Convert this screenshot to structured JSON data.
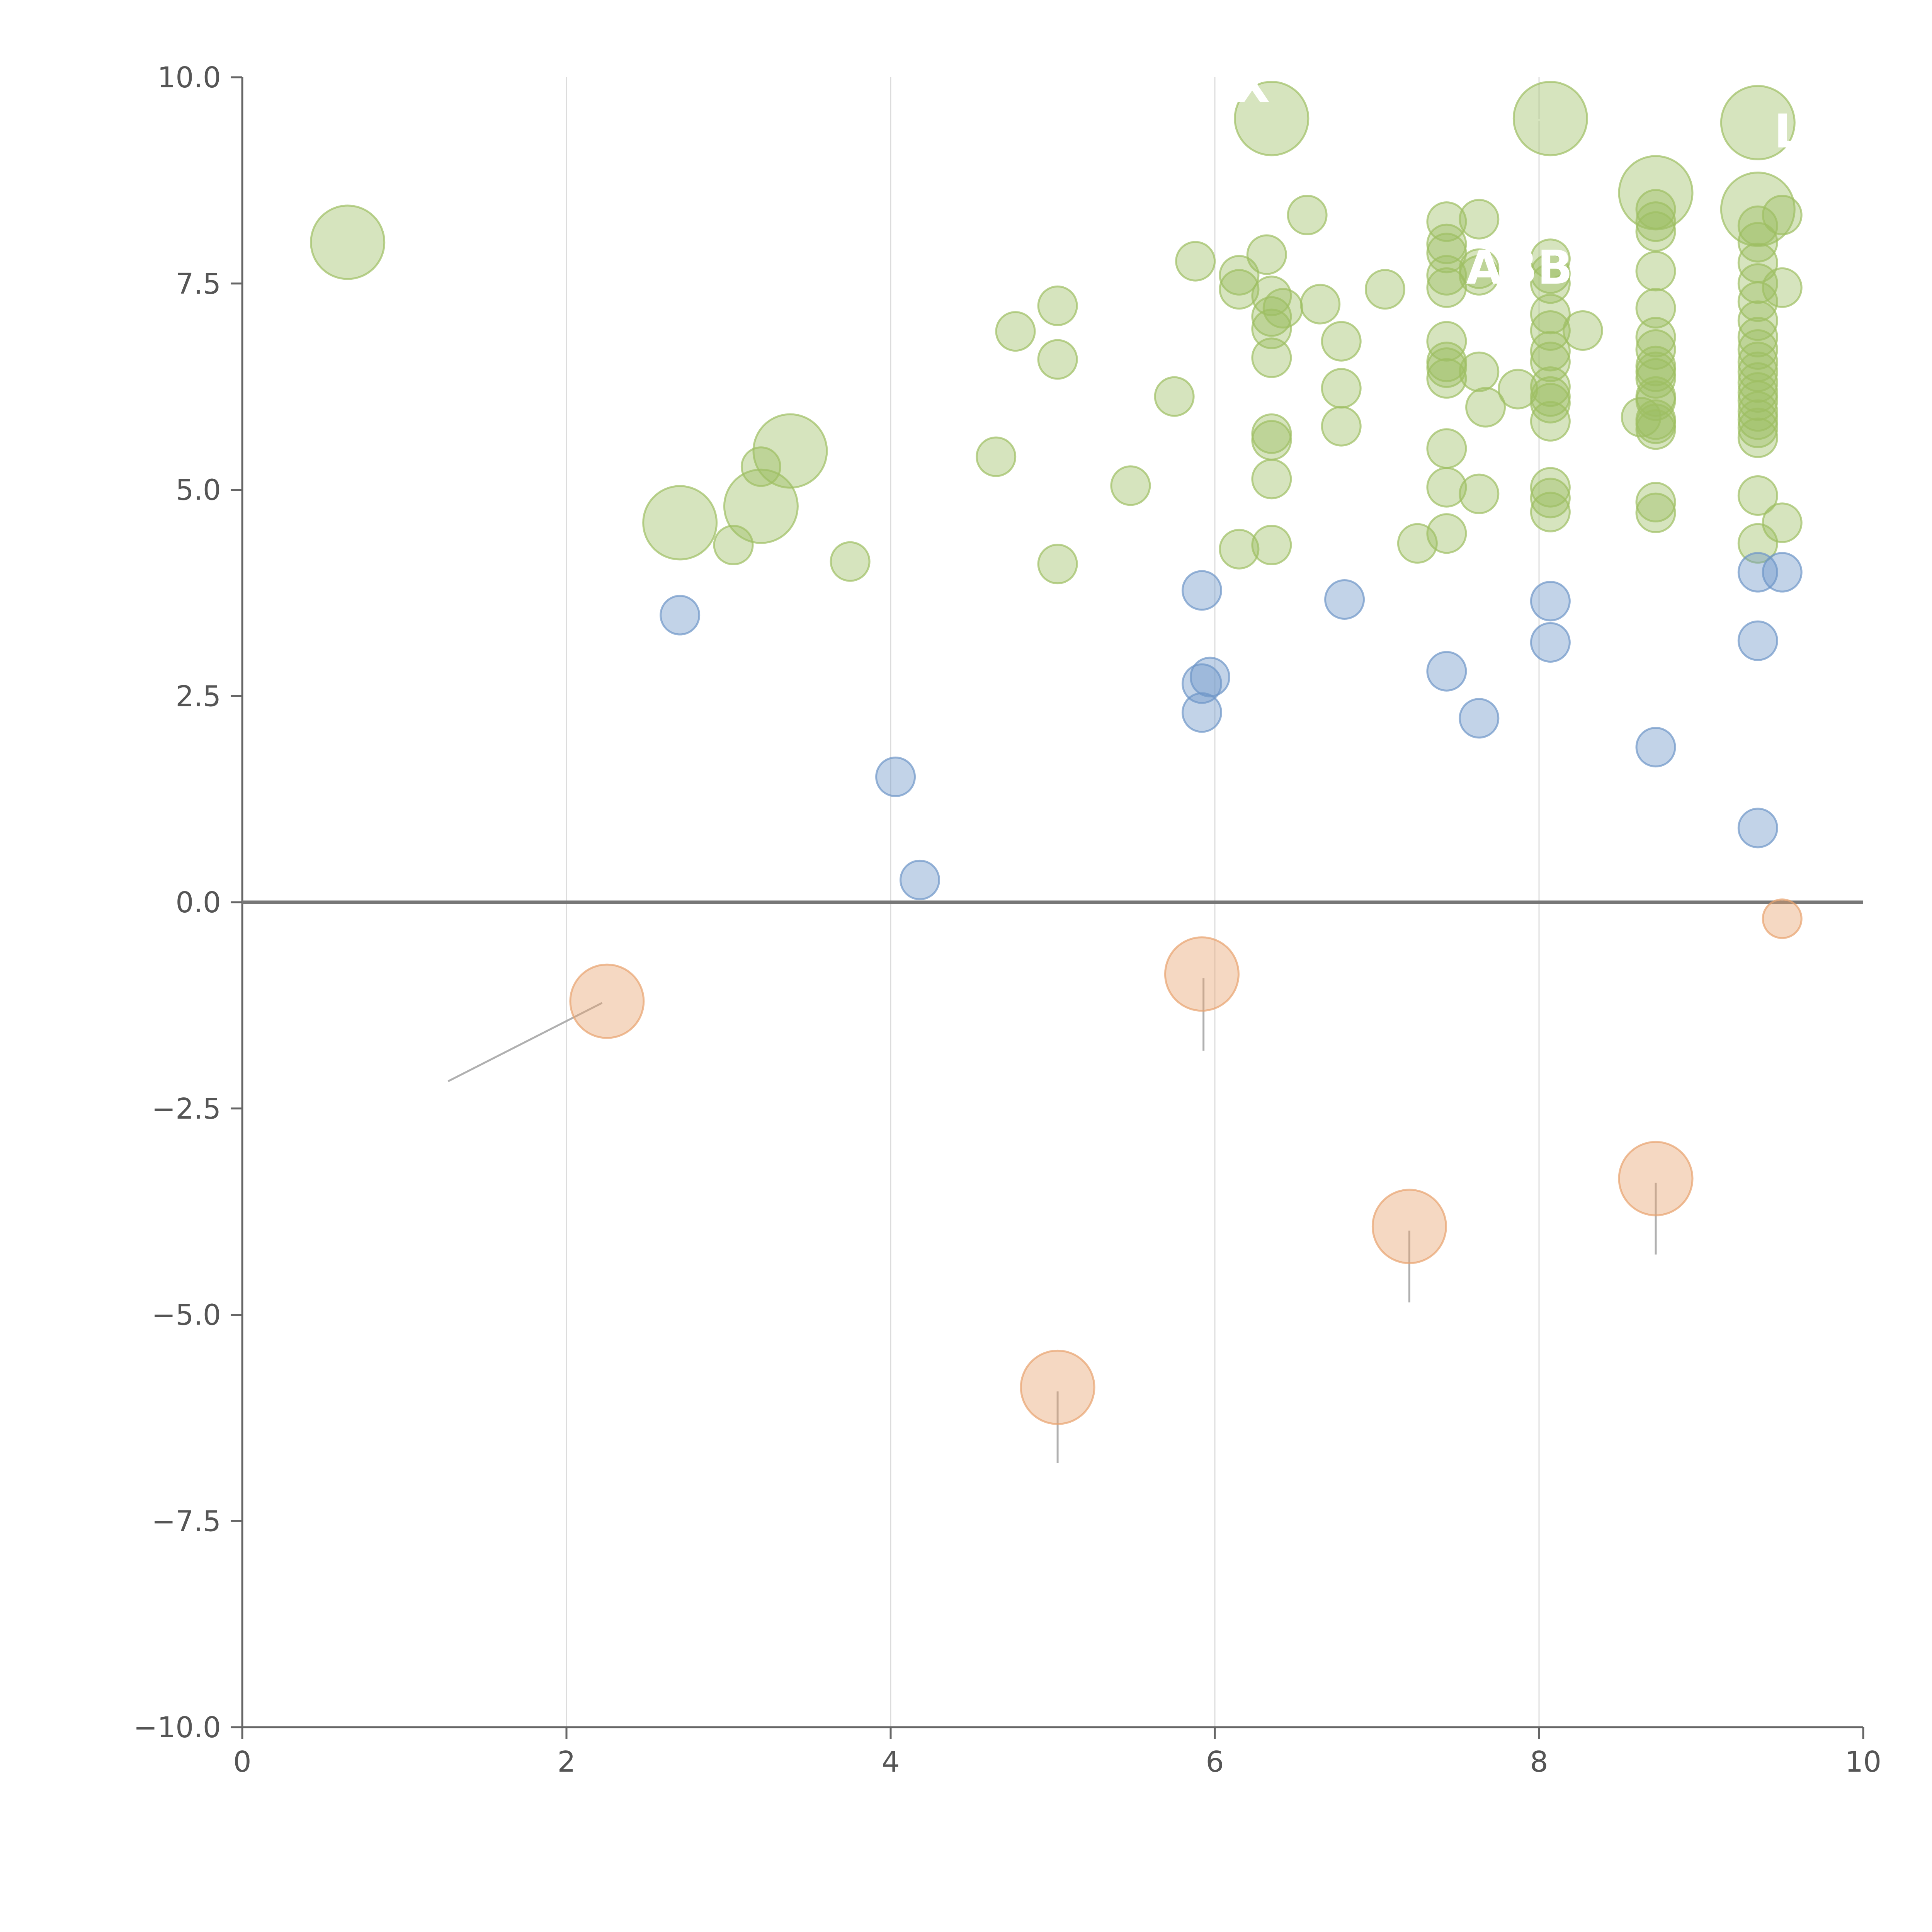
{
  "chart_data": {
    "type": "scatter",
    "title": "",
    "xlabel": "",
    "ylabel": "",
    "xlim": [
      0,
      10
    ],
    "ylim": [
      -10,
      10
    ],
    "x_ticks": [
      0,
      2,
      4,
      6,
      8,
      10
    ],
    "y_ticks": [
      10,
      7.5,
      5,
      2.5,
      0,
      -2.5,
      -5,
      -7.5,
      -10
    ],
    "x_tick_labels": [
      "0",
      "2",
      "4",
      "6",
      "8",
      "10"
    ],
    "y_tick_labels": [
      "10.0",
      "7.5",
      "5.0",
      "2.5",
      "0.0",
      "−2.5",
      "−5.0",
      "−7.5",
      "−10.0"
    ],
    "grid": "vertical lines at x ticks",
    "zero_line": true,
    "colors": {
      "green": "#9ebf63",
      "blue": "#6e96c8",
      "orange": "#e8a26e"
    },
    "series": [
      {
        "color": "green",
        "points": [
          {
            "x": 0.65,
            "y": 8.0,
            "size": "large"
          },
          {
            "x": 2.7,
            "y": 4.6,
            "size": "large"
          },
          {
            "x": 3.2,
            "y": 4.8,
            "size": "large"
          },
          {
            "x": 3.38,
            "y": 5.47,
            "size": "large"
          },
          {
            "x": 6.35,
            "y": 9.5,
            "size": "large"
          },
          {
            "x": 8.07,
            "y": 9.5,
            "size": "large"
          },
          {
            "x": 8.72,
            "y": 8.6,
            "size": "large"
          },
          {
            "x": 9.35,
            "y": 9.45,
            "size": "large"
          },
          {
            "x": 9.35,
            "y": 8.4,
            "size": "large"
          },
          {
            "x": 3.03,
            "y": 4.33
          },
          {
            "x": 3.2,
            "y": 5.28
          },
          {
            "x": 3.75,
            "y": 4.13
          },
          {
            "x": 4.65,
            "y": 5.4
          },
          {
            "x": 4.77,
            "y": 6.92
          },
          {
            "x": 5.03,
            "y": 7.23
          },
          {
            "x": 5.03,
            "y": 6.58
          },
          {
            "x": 5.03,
            "y": 4.1
          },
          {
            "x": 5.48,
            "y": 5.05
          },
          {
            "x": 5.75,
            "y": 6.13
          },
          {
            "x": 5.88,
            "y": 7.77
          },
          {
            "x": 6.15,
            "y": 7.6
          },
          {
            "x": 6.15,
            "y": 7.43
          },
          {
            "x": 6.15,
            "y": 4.28
          },
          {
            "x": 6.32,
            "y": 7.85
          },
          {
            "x": 6.35,
            "y": 7.35
          },
          {
            "x": 6.35,
            "y": 7.1
          },
          {
            "x": 6.35,
            "y": 6.95
          },
          {
            "x": 6.35,
            "y": 6.6
          },
          {
            "x": 6.35,
            "y": 5.68
          },
          {
            "x": 6.35,
            "y": 5.6
          },
          {
            "x": 6.35,
            "y": 5.13
          },
          {
            "x": 6.35,
            "y": 4.33
          },
          {
            "x": 6.42,
            "y": 7.2
          },
          {
            "x": 6.57,
            "y": 8.33
          },
          {
            "x": 6.65,
            "y": 7.25
          },
          {
            "x": 6.78,
            "y": 6.8
          },
          {
            "x": 6.78,
            "y": 6.23
          },
          {
            "x": 6.78,
            "y": 5.77
          },
          {
            "x": 7.05,
            "y": 7.43
          },
          {
            "x": 7.25,
            "y": 4.35
          },
          {
            "x": 7.43,
            "y": 8.25
          },
          {
            "x": 7.43,
            "y": 7.98
          },
          {
            "x": 7.43,
            "y": 7.87
          },
          {
            "x": 7.43,
            "y": 7.6
          },
          {
            "x": 7.43,
            "y": 7.45
          },
          {
            "x": 7.43,
            "y": 6.8
          },
          {
            "x": 7.43,
            "y": 6.55
          },
          {
            "x": 7.43,
            "y": 6.48
          },
          {
            "x": 7.43,
            "y": 6.35
          },
          {
            "x": 7.43,
            "y": 5.5
          },
          {
            "x": 7.43,
            "y": 5.03
          },
          {
            "x": 7.43,
            "y": 4.47
          },
          {
            "x": 7.63,
            "y": 8.28
          },
          {
            "x": 7.63,
            "y": 7.68
          },
          {
            "x": 7.63,
            "y": 7.6
          },
          {
            "x": 7.63,
            "y": 6.43
          },
          {
            "x": 7.63,
            "y": 4.95
          },
          {
            "x": 7.67,
            "y": 6.0
          },
          {
            "x": 7.87,
            "y": 6.22
          },
          {
            "x": 8.07,
            "y": 7.8
          },
          {
            "x": 8.07,
            "y": 7.62
          },
          {
            "x": 8.07,
            "y": 7.5
          },
          {
            "x": 8.07,
            "y": 7.13
          },
          {
            "x": 8.07,
            "y": 6.93
          },
          {
            "x": 8.07,
            "y": 6.68
          },
          {
            "x": 8.07,
            "y": 6.55
          },
          {
            "x": 8.07,
            "y": 6.25
          },
          {
            "x": 8.07,
            "y": 6.13
          },
          {
            "x": 8.07,
            "y": 6.05
          },
          {
            "x": 8.07,
            "y": 5.83
          },
          {
            "x": 8.07,
            "y": 5.03
          },
          {
            "x": 8.07,
            "y": 4.9
          },
          {
            "x": 8.07,
            "y": 4.73
          },
          {
            "x": 8.27,
            "y": 6.93
          },
          {
            "x": 8.63,
            "y": 5.88
          },
          {
            "x": 8.72,
            "y": 8.4
          },
          {
            "x": 8.72,
            "y": 8.25
          },
          {
            "x": 8.72,
            "y": 8.13
          },
          {
            "x": 8.72,
            "y": 7.65
          },
          {
            "x": 8.72,
            "y": 7.2
          },
          {
            "x": 8.72,
            "y": 6.85
          },
          {
            "x": 8.72,
            "y": 6.7
          },
          {
            "x": 8.72,
            "y": 6.5
          },
          {
            "x": 8.72,
            "y": 6.43
          },
          {
            "x": 8.72,
            "y": 6.35
          },
          {
            "x": 8.72,
            "y": 6.13
          },
          {
            "x": 8.72,
            "y": 6.08
          },
          {
            "x": 8.72,
            "y": 5.85
          },
          {
            "x": 8.72,
            "y": 5.8
          },
          {
            "x": 8.72,
            "y": 5.73
          },
          {
            "x": 8.72,
            "y": 4.85
          },
          {
            "x": 8.72,
            "y": 4.72
          },
          {
            "x": 9.35,
            "y": 8.2
          },
          {
            "x": 9.35,
            "y": 8.0
          },
          {
            "x": 9.35,
            "y": 7.75
          },
          {
            "x": 9.35,
            "y": 7.5
          },
          {
            "x": 9.35,
            "y": 7.28
          },
          {
            "x": 9.35,
            "y": 7.05
          },
          {
            "x": 9.35,
            "y": 6.85
          },
          {
            "x": 9.35,
            "y": 6.7
          },
          {
            "x": 9.35,
            "y": 6.55
          },
          {
            "x": 9.35,
            "y": 6.43
          },
          {
            "x": 9.35,
            "y": 6.3
          },
          {
            "x": 9.35,
            "y": 6.18
          },
          {
            "x": 9.35,
            "y": 6.08
          },
          {
            "x": 9.35,
            "y": 5.95
          },
          {
            "x": 9.35,
            "y": 5.85
          },
          {
            "x": 9.35,
            "y": 5.75
          },
          {
            "x": 9.35,
            "y": 5.63
          },
          {
            "x": 9.35,
            "y": 4.93
          },
          {
            "x": 9.35,
            "y": 4.35
          },
          {
            "x": 9.5,
            "y": 8.33
          },
          {
            "x": 9.5,
            "y": 7.45
          },
          {
            "x": 9.5,
            "y": 4.6
          }
        ]
      },
      {
        "color": "blue",
        "points": [
          {
            "x": 2.7,
            "y": 3.48
          },
          {
            "x": 4.03,
            "y": 1.52
          },
          {
            "x": 4.18,
            "y": 0.27
          },
          {
            "x": 5.92,
            "y": 3.78
          },
          {
            "x": 5.92,
            "y": 2.65
          },
          {
            "x": 5.97,
            "y": 2.73
          },
          {
            "x": 5.92,
            "y": 2.3
          },
          {
            "x": 6.8,
            "y": 3.67
          },
          {
            "x": 7.43,
            "y": 2.8
          },
          {
            "x": 7.63,
            "y": 2.23
          },
          {
            "x": 8.07,
            "y": 3.65
          },
          {
            "x": 8.07,
            "y": 3.15
          },
          {
            "x": 8.72,
            "y": 1.88
          },
          {
            "x": 9.35,
            "y": 4.0
          },
          {
            "x": 9.5,
            "y": 4.0
          },
          {
            "x": 9.35,
            "y": 3.17
          },
          {
            "x": 9.35,
            "y": 0.9
          }
        ]
      },
      {
        "color": "orange",
        "points": [
          {
            "x": 2.25,
            "y": -1.2,
            "size": "large"
          },
          {
            "x": 5.92,
            "y": -0.87,
            "size": "large"
          },
          {
            "x": 5.03,
            "y": -5.88,
            "size": "large"
          },
          {
            "x": 7.2,
            "y": -3.93,
            "size": "large"
          },
          {
            "x": 8.72,
            "y": -3.35,
            "size": "large"
          },
          {
            "x": 9.5,
            "y": -0.2
          }
        ]
      }
    ],
    "annotations": [
      {
        "text": "X",
        "x": 6.12,
        "y": 9.7,
        "leader": [
          [
            6.3,
            9.55
          ],
          [
            6.65,
            9.45
          ]
        ]
      },
      {
        "text": "",
        "x": 7.9,
        "y": 9.5,
        "leader": [
          [
            7.8,
            9.5
          ],
          [
            8.4,
            9.45
          ]
        ]
      },
      {
        "text": "LP",
        "x": 9.45,
        "y": 9.15,
        "leader": [
          [
            9.2,
            9.5
          ],
          [
            9.55,
            9.45
          ]
        ]
      },
      {
        "text": "ABB",
        "x": 7.55,
        "y": 7.5,
        "leader": [
          [
            7.75,
            7.5
          ],
          [
            8.2,
            7.68
          ]
        ]
      },
      {
        "text": "",
        "x": 9.2,
        "y": 8.6,
        "leader": [
          [
            8.72,
            8.6
          ],
          [
            9.05,
            8.78
          ]
        ]
      },
      {
        "text": "",
        "x": 9.1,
        "y": 8.05,
        "leader": [
          [
            8.9,
            8.1
          ],
          [
            9.35,
            8.35
          ]
        ]
      },
      {
        "text": "",
        "x": 3.5,
        "y": 5.6,
        "leader": [
          [
            3.38,
            5.55
          ],
          [
            3.5,
            5.65
          ]
        ]
      },
      {
        "text": "",
        "x": 3.3,
        "y": 4.8,
        "leader": [
          [
            3.25,
            4.8
          ],
          [
            3.45,
            4.8
          ]
        ]
      },
      {
        "text": "",
        "x": 1.25,
        "y": -2.2,
        "leader": [
          [
            1.27,
            -2.17
          ],
          [
            2.22,
            -1.22
          ]
        ]
      },
      {
        "text": "",
        "x": 5.93,
        "y": -1.8,
        "leader": [
          [
            5.93,
            -0.92
          ],
          [
            5.93,
            -1.8
          ]
        ]
      },
      {
        "text": "",
        "x": 5.03,
        "y": -6.8,
        "leader": [
          [
            5.03,
            -5.93
          ],
          [
            5.03,
            -6.8
          ]
        ]
      },
      {
        "text": "",
        "x": 7.2,
        "y": -4.85,
        "leader": [
          [
            7.2,
            -3.98
          ],
          [
            7.2,
            -4.85
          ]
        ]
      },
      {
        "text": "",
        "x": 8.72,
        "y": -4.27,
        "leader": [
          [
            8.72,
            -3.4
          ],
          [
            8.72,
            -4.27
          ]
        ]
      }
    ]
  }
}
